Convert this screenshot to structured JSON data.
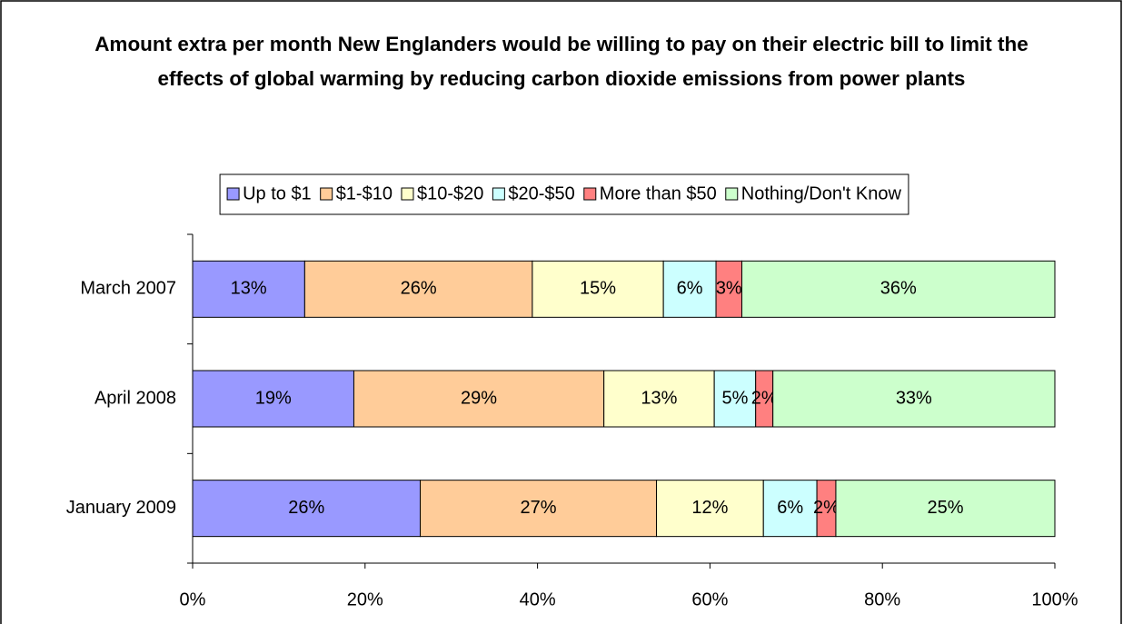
{
  "chart_data": {
    "type": "stacked-bar-horizontal",
    "title": "Amount extra per month New Englanders would be willing to pay on their electric bill to limit the effects of global warming by reducing carbon dioxide emissions from power plants",
    "categories": [
      "March 2007",
      "April 2008",
      "January 2009"
    ],
    "series": [
      {
        "name": "Up to $1",
        "color": "#9999ff",
        "values": [
          13.0,
          18.7,
          26.4
        ],
        "value_labels": [
          "13%",
          "19%",
          "26%"
        ]
      },
      {
        "name": "$1-$10",
        "color": "#ffcc99",
        "values": [
          26.4,
          29.0,
          27.4
        ],
        "value_labels": [
          "26%",
          "29%",
          "27%"
        ]
      },
      {
        "name": "$10-$20",
        "color": "#ffffcc",
        "values": [
          15.2,
          12.8,
          12.4
        ],
        "value_labels": [
          "15%",
          "13%",
          "12%"
        ]
      },
      {
        "name": "$20-$50",
        "color": "#ccffff",
        "values": [
          6.1,
          4.8,
          6.2
        ],
        "value_labels": [
          "6%",
          "5%",
          "6%"
        ]
      },
      {
        "name": "More than $50",
        "color": "#ff8080",
        "values": [
          3.0,
          2.0,
          2.2
        ],
        "value_labels": [
          "3%",
          "2%",
          "2%"
        ]
      },
      {
        "name": "Nothing/Don't Know",
        "color": "#ccffcc",
        "values": [
          36.3,
          32.7,
          25.4
        ],
        "value_labels": [
          "36%",
          "33%",
          "25%"
        ]
      }
    ],
    "xlim": [
      0,
      100
    ],
    "xticks": [
      {
        "value": 0,
        "label": "0%"
      },
      {
        "value": 20,
        "label": "20%"
      },
      {
        "value": 40,
        "label": "40%"
      },
      {
        "value": 60,
        "label": "60%"
      },
      {
        "value": 80,
        "label": "80%"
      },
      {
        "value": 100,
        "label": "100%"
      }
    ],
    "legend": "top"
  }
}
